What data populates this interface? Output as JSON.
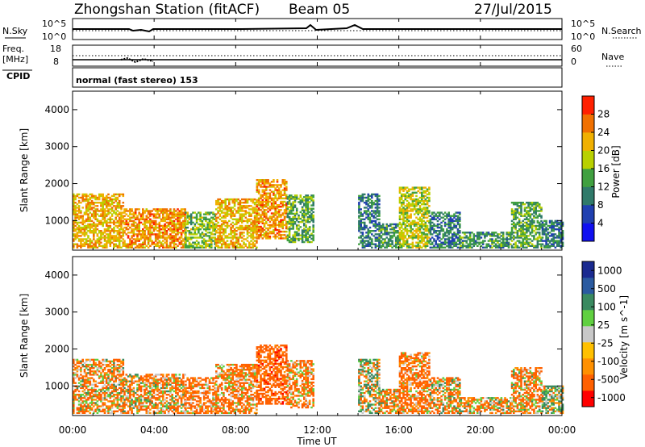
{
  "header": {
    "station": "Zhongshan Station (fitACF)",
    "beam": "Beam 05",
    "date": "27/Jul/2015"
  },
  "summary_panel": {
    "nsky_label": "N.Sky",
    "nsky_ticks": [
      "10^5",
      "10^0"
    ],
    "nsearch_label": "N.Search",
    "nsearch_ticks": [
      "10^5",
      "10^0"
    ],
    "freq_label": "Freq.",
    "freq_unit": "[MHz]",
    "freq_ticks": [
      "18",
      "8"
    ],
    "nave_label": "Nave",
    "nave_ticks": [
      "60",
      "0"
    ],
    "cpid_label": "CPID",
    "cpid_text": "normal (fast stereo) 153"
  },
  "colors": {
    "power": [
      "#1010f0",
      "#2040b0",
      "#307a6a",
      "#40a040",
      "#b8d000",
      "#f0b000",
      "#f07000",
      "#ff2000"
    ],
    "velocity": [
      "#ff0000",
      "#ff6000",
      "#ff9000",
      "#ffc000",
      "#c8c8c8",
      "#60d040",
      "#3a8a60",
      "#2a5aa0",
      "#1a2a90"
    ]
  },
  "chart_data": [
    {
      "type": "heatmap",
      "panel": "power",
      "ylabel": "Slant Range [km]",
      "yticks": [
        "1000",
        "2000",
        "3000",
        "4000"
      ],
      "ylim": [
        200,
        4500
      ],
      "xticks": [
        "00:00",
        "04:00",
        "08:00",
        "12:00",
        "16:00",
        "20:00",
        "00:00"
      ],
      "xlim_hours": [
        0,
        24
      ],
      "colorbar": {
        "label": "Power [dB]",
        "ticks": [
          "4",
          "8",
          "12",
          "16",
          "20",
          "24",
          "28"
        ],
        "range": [
          0,
          32
        ]
      },
      "echo_regions": [
        {
          "t": [
            0.0,
            2.5
          ],
          "r": [
            250,
            1700
          ],
          "value": 22
        },
        {
          "t": [
            2.5,
            5.5
          ],
          "r": [
            250,
            1300
          ],
          "value": 24
        },
        {
          "t": [
            5.5,
            7.0
          ],
          "r": [
            250,
            1200
          ],
          "value": 16
        },
        {
          "t": [
            7.0,
            9.0
          ],
          "r": [
            250,
            1600
          ],
          "value": 22
        },
        {
          "t": [
            9.0,
            10.5
          ],
          "r": [
            500,
            2100
          ],
          "value": 24
        },
        {
          "t": [
            10.5,
            11.8
          ],
          "r": [
            400,
            1700
          ],
          "value": 14
        },
        {
          "t": [
            14.0,
            15.0
          ],
          "r": [
            250,
            1700
          ],
          "value": 10
        },
        {
          "t": [
            15.0,
            16.0
          ],
          "r": [
            250,
            900
          ],
          "value": 12
        },
        {
          "t": [
            16.0,
            17.5
          ],
          "r": [
            250,
            1900
          ],
          "value": 18
        },
        {
          "t": [
            17.5,
            19.0
          ],
          "r": [
            250,
            1200
          ],
          "value": 10
        },
        {
          "t": [
            19.0,
            21.5
          ],
          "r": [
            250,
            700
          ],
          "value": 12
        },
        {
          "t": [
            21.5,
            23.0
          ],
          "r": [
            250,
            1500
          ],
          "value": 14
        },
        {
          "t": [
            23.0,
            24.0
          ],
          "r": [
            250,
            1000
          ],
          "value": 10
        }
      ]
    },
    {
      "type": "heatmap",
      "panel": "velocity",
      "ylabel": "Slant Range [km]",
      "yticks": [
        "1000",
        "2000",
        "3000",
        "4000"
      ],
      "ylim": [
        200,
        4500
      ],
      "xticks": [
        "00:00",
        "04:00",
        "08:00",
        "12:00",
        "16:00",
        "20:00",
        "00:00"
      ],
      "xlim_hours": [
        0,
        24
      ],
      "xlabel": "Time UT",
      "colorbar": {
        "label": "Velocity [m s^-1]",
        "ticks": [
          "1000",
          "500",
          "100",
          "25",
          "-25",
          "-100",
          "-500",
          "-1000"
        ],
        "range": [
          -1000,
          1000
        ]
      },
      "echo_regions": [
        {
          "t": [
            0.0,
            2.5
          ],
          "r": [
            250,
            1700
          ],
          "value": -100
        },
        {
          "t": [
            2.5,
            5.5
          ],
          "r": [
            250,
            1300
          ],
          "value": -100
        },
        {
          "t": [
            5.5,
            7.0
          ],
          "r": [
            250,
            1200
          ],
          "value": -200
        },
        {
          "t": [
            7.0,
            9.0
          ],
          "r": [
            250,
            1600
          ],
          "value": -150
        },
        {
          "t": [
            9.0,
            10.5
          ],
          "r": [
            500,
            2100
          ],
          "value": -300
        },
        {
          "t": [
            10.5,
            11.8
          ],
          "r": [
            400,
            1700
          ],
          "value": -150
        },
        {
          "t": [
            14.0,
            15.0
          ],
          "r": [
            250,
            1700
          ],
          "value": 50
        },
        {
          "t": [
            15.0,
            16.0
          ],
          "r": [
            250,
            900
          ],
          "value": -100
        },
        {
          "t": [
            16.0,
            17.5
          ],
          "r": [
            250,
            1900
          ],
          "value": -200
        },
        {
          "t": [
            17.5,
            19.0
          ],
          "r": [
            250,
            1200
          ],
          "value": -100
        },
        {
          "t": [
            19.0,
            21.5
          ],
          "r": [
            250,
            700
          ],
          "value": -100
        },
        {
          "t": [
            21.5,
            23.0
          ],
          "r": [
            250,
            1500
          ],
          "value": -100
        },
        {
          "t": [
            23.0,
            24.0
          ],
          "r": [
            250,
            1000
          ],
          "value": 100
        }
      ]
    }
  ]
}
